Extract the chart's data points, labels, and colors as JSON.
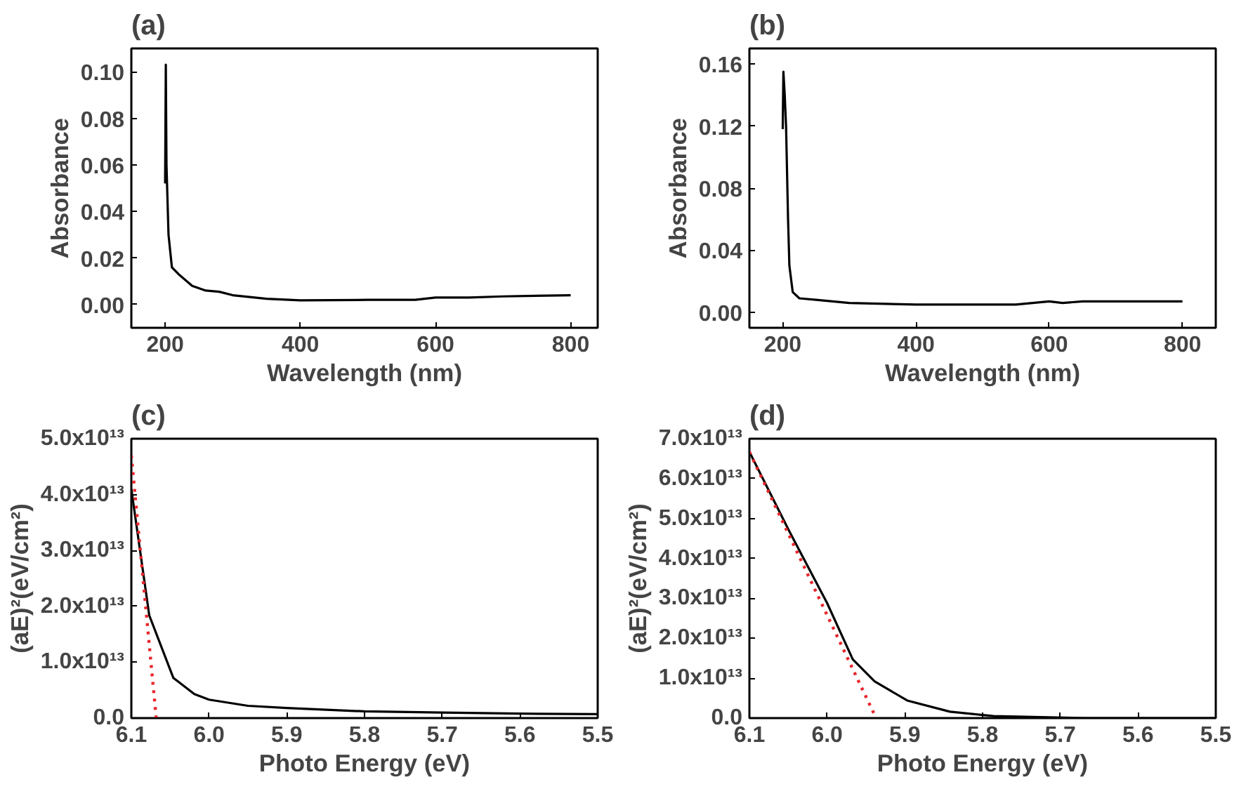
{
  "chart_data": [
    {
      "type": "line",
      "title": "(a)",
      "xlabel": "Wavelength (nm)",
      "ylabel": "Absorbance",
      "xlim": [
        150,
        840
      ],
      "ylim": [
        -0.01,
        0.11
      ],
      "xticks": [
        200,
        400,
        600,
        800
      ],
      "yticks": [
        {
          "value": 0,
          "label": "0.00"
        },
        {
          "value": 0.02,
          "label": "0.02"
        },
        {
          "value": 0.04,
          "label": "0.04"
        },
        {
          "value": 0.06,
          "label": "0.06"
        },
        {
          "value": 0.08,
          "label": "0.08"
        },
        {
          "value": 0.1,
          "label": "0.10"
        }
      ],
      "grid": false,
      "series": [
        {
          "color": "#000000",
          "x": [
            200,
            201,
            202,
            205,
            210,
            220,
            240,
            260,
            280,
            300,
            350,
            400,
            500,
            570,
            600,
            650,
            700,
            800
          ],
          "values": [
            0.052,
            0.103,
            0.06,
            0.03,
            0.016,
            0.013,
            0.008,
            0.006,
            0.0055,
            0.004,
            0.0025,
            0.0018,
            0.002,
            0.002,
            0.003,
            0.003,
            0.0035,
            0.004
          ]
        }
      ]
    },
    {
      "type": "line",
      "title": "(b)",
      "xlabel": "Wavelength (nm)",
      "ylabel": "Absorbance",
      "xlim": [
        150,
        850
      ],
      "ylim": [
        -0.01,
        0.17
      ],
      "xticks": [
        200,
        400,
        600,
        800
      ],
      "yticks": [
        {
          "value": 0,
          "label": "0.00"
        },
        {
          "value": 0.04,
          "label": "0.04"
        },
        {
          "value": 0.08,
          "label": "0.08"
        },
        {
          "value": 0.12,
          "label": "0.12"
        },
        {
          "value": 0.16,
          "label": "0.16"
        }
      ],
      "grid": false,
      "series": [
        {
          "color": "#000000",
          "x": [
            200,
            201,
            203,
            205,
            208,
            210,
            215,
            225,
            250,
            300,
            400,
            550,
            600,
            620,
            650,
            800
          ],
          "values": [
            0.118,
            0.155,
            0.14,
            0.12,
            0.06,
            0.03,
            0.013,
            0.009,
            0.008,
            0.006,
            0.005,
            0.005,
            0.007,
            0.006,
            0.007,
            0.007
          ]
        }
      ]
    },
    {
      "type": "line",
      "title": "(c)",
      "xlabel": "Photo Energy (eV)",
      "ylabel": "(aE)²(eV/cm²)",
      "xlim": [
        6.1,
        5.5
      ],
      "ylim": [
        0,
        50000000000000.0
      ],
      "xticks": [
        6.1,
        {
          "value": 6.0,
          "label": "6.0"
        },
        5.9,
        5.8,
        5.7,
        5.6,
        5.5
      ],
      "yticks": [
        {
          "value": 0,
          "label": "0.0"
        },
        {
          "value": 10000000000000.0,
          "label": "1.0x10¹³"
        },
        {
          "value": 20000000000000.0,
          "label": "2.0x10¹³"
        },
        {
          "value": 30000000000000.0,
          "label": "3.0x10¹³"
        },
        {
          "value": 40000000000000.0,
          "label": "4.0x10¹³"
        },
        {
          "value": 50000000000000.0,
          "label": "5.0x10¹³"
        }
      ],
      "grid": false,
      "series": [
        {
          "color": "#000000",
          "x": [
            6.1,
            6.077,
            6.046,
            6.019,
            6.0,
            5.95,
            5.9,
            5.8,
            5.7,
            5.6,
            5.5
          ],
          "values": [
            41000000000000.0,
            18400000000000.0,
            7200000000000.0,
            4300000000000.0,
            3300000000000.0,
            2200000000000.0,
            1800000000000.0,
            1200000000000.0,
            1000000000000.0,
            800000000000.0,
            700000000000.0
          ]
        },
        {
          "color": "#e8262b",
          "line_style": "dotted",
          "x": [
            6.1,
            6.068
          ],
          "values": [
            47000000000000.0,
            0
          ]
        }
      ]
    },
    {
      "type": "line",
      "title": "(d)",
      "xlabel": "Photo Energy (eV)",
      "ylabel": "(aE)²(eV/cm²)",
      "xlim": [
        6.1,
        5.5
      ],
      "ylim": [
        0,
        70000000000000.0
      ],
      "xticks": [
        6.1,
        {
          "value": 6.0,
          "label": "6.0"
        },
        5.9,
        5.8,
        5.7,
        5.6,
        5.5
      ],
      "yticks": [
        {
          "value": 0,
          "label": "0.0"
        },
        {
          "value": 10000000000000.0,
          "label": "1.0x10¹³"
        },
        {
          "value": 20000000000000.0,
          "label": "2.0x10¹³"
        },
        {
          "value": 30000000000000.0,
          "label": "3.0x10¹³"
        },
        {
          "value": 40000000000000.0,
          "label": "4.0x10¹³"
        },
        {
          "value": 50000000000000.0,
          "label": "5.0x10¹³"
        },
        {
          "value": 60000000000000.0,
          "label": "6.0x10¹³"
        },
        {
          "value": 70000000000000.0,
          "label": "7.0x10¹³"
        }
      ],
      "grid": false,
      "series": [
        {
          "color": "#000000",
          "x": [
            6.1,
            6.05,
            6.0,
            5.967,
            5.939,
            5.897,
            5.842,
            5.786,
            5.67,
            5.5
          ],
          "values": [
            66700000000000.0,
            47300000000000.0,
            28800000000000.0,
            14700000000000.0,
            9200000000000.0,
            4400000000000.0,
            1600000000000.0,
            500000000000.0,
            0,
            0
          ]
        },
        {
          "color": "#e8262b",
          "line_style": "dotted",
          "x": [
            6.1,
            5.937
          ],
          "values": [
            66700000000000.0,
            0
          ]
        }
      ]
    }
  ]
}
